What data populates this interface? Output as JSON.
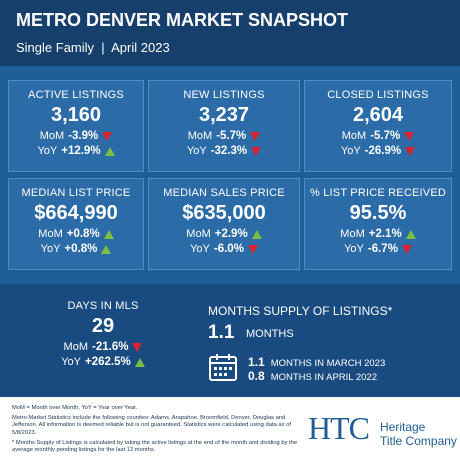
{
  "header": {
    "title": "METRO DENVER MARKET SNAPSHOT",
    "subtitle": "Single Family  |  April 2023"
  },
  "tiles": [
    {
      "label": "ACTIVE LISTINGS",
      "value": "3,160",
      "changes": [
        {
          "period": "MoM",
          "value": "-3.9%",
          "arrow": "down"
        },
        {
          "period": "YoY",
          "value": "+12.9%",
          "arrow": "up"
        }
      ]
    },
    {
      "label": "NEW LISTINGS",
      "value": "3,237",
      "changes": [
        {
          "period": "MoM",
          "value": "-5.7%",
          "arrow": "down"
        },
        {
          "period": "YoY",
          "value": "-32.3%",
          "arrow": "down"
        }
      ]
    },
    {
      "label": "CLOSED LISTINGS",
      "value": "2,604",
      "changes": [
        {
          "period": "MoM",
          "value": "-5.7%",
          "arrow": "down"
        },
        {
          "period": "YoY",
          "value": "-26.9%",
          "arrow": "down"
        }
      ]
    },
    {
      "label": "MEDIAN LIST PRICE",
      "value": "$664,990",
      "changes": [
        {
          "period": "MoM",
          "value": "+0.8%",
          "arrow": "up"
        },
        {
          "period": "YoY",
          "value": "+0.8%",
          "arrow": "up"
        }
      ]
    },
    {
      "label": "MEDIAN SALES PRICE",
      "value": "$635,000",
      "changes": [
        {
          "period": "MoM",
          "value": "+2.9%",
          "arrow": "up"
        },
        {
          "period": "YoY",
          "value": "-6.0%",
          "arrow": "down"
        }
      ]
    },
    {
      "label": "% LIST PRICE RECEIVED",
      "value": "95.5%",
      "changes": [
        {
          "period": "MoM",
          "value": "+2.1%",
          "arrow": "up"
        },
        {
          "period": "YoY",
          "value": "-6.7%",
          "arrow": "down"
        }
      ]
    }
  ],
  "days_in_mls": {
    "label": "DAYS IN MLS",
    "value": "29",
    "changes": [
      {
        "period": "MoM",
        "value": "-21.6%",
        "arrow": "down"
      },
      {
        "period": "YoY",
        "value": "+262.5%",
        "arrow": "up"
      }
    ]
  },
  "months_supply": {
    "title": "MONTHS SUPPLY OF LISTINGS*",
    "value": "1.1",
    "unit": "MONTHS",
    "comparisons": [
      {
        "value": "1.1",
        "label": "MONTHS IN MARCH 2023"
      },
      {
        "value": "0.8",
        "label": "MONTHS IN APRIL 2022"
      }
    ]
  },
  "footer": {
    "notes": [
      "MoM = Month over Month, YoY = Year over Year.",
      "Metro Market Statistics include the following counties: Adams, Arapahoe, Broomfield, Denver, Douglas and Jefferson. All information is deemed reliable but is not guaranteed. Statistics were calculated using data as of 5/8/2023.",
      "* Months Supply of Listings is calculated by taking the active listings at the end of the month and dividing by the average monthly pending listings for the last 12 months."
    ]
  },
  "logo": {
    "mark": "HTC",
    "line1": "Heritage",
    "line2": "Title Company"
  }
}
